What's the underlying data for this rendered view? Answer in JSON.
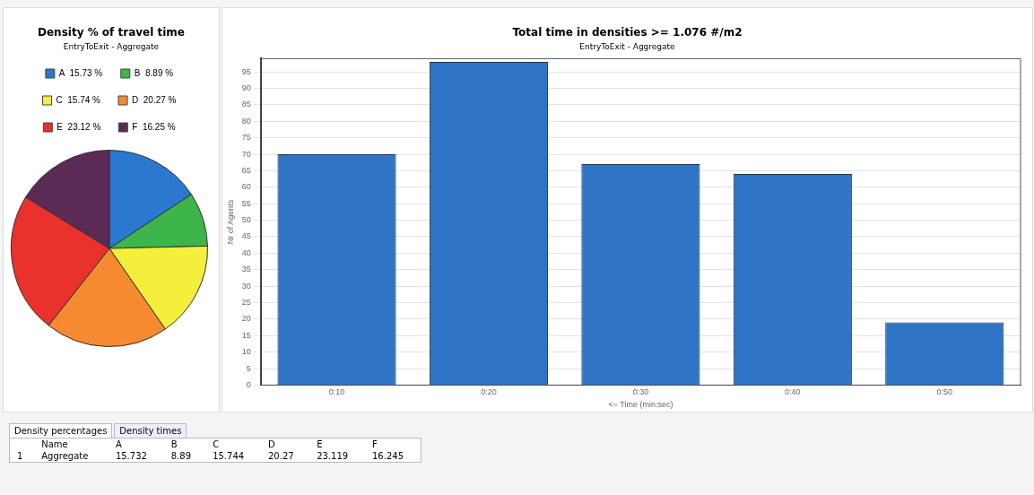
{
  "chart_data": [
    {
      "type": "pie",
      "title": "Density % of travel time",
      "subtitle": "EntryToExit - Aggregate",
      "categories": [
        "A",
        "B",
        "C",
        "D",
        "E",
        "F"
      ],
      "values": [
        15.732,
        8.89,
        15.744,
        20.27,
        23.119,
        16.245
      ],
      "value_labels": [
        "15.73 %",
        "8.89 %",
        "15.74 %",
        "20.27 %",
        "23.12 %",
        "16.25 %"
      ],
      "colors": [
        "#2b78d0",
        "#3db54a",
        "#f4ef3c",
        "#f58a30",
        "#e8322b",
        "#5b2b56"
      ],
      "legend": "top"
    },
    {
      "type": "bar",
      "title": "Total time in densities >= 1.076 #/m2",
      "subtitle": "EntryToExit - Aggregate",
      "categories": [
        "0:10",
        "0:20",
        "0:30",
        "0:40",
        "0:50"
      ],
      "values": [
        70,
        98,
        67,
        64,
        19
      ],
      "color": "#2f74c4",
      "xlabel": "<= Time (min:sec)",
      "ylabel": "Nr of Agents",
      "ylim": [
        0,
        99
      ],
      "yticks": [
        0,
        5,
        10,
        15,
        20,
        25,
        30,
        35,
        40,
        45,
        50,
        55,
        60,
        65,
        70,
        75,
        80,
        85,
        90,
        95
      ],
      "grid": "y",
      "legend": false
    },
    {
      "type": "other",
      "annotations": [
        "Density percentages",
        "Density times",
        "Name",
        "A",
        "B",
        "C",
        "D",
        "E",
        "F",
        "1",
        "Aggregate",
        "15.732",
        "8.89",
        "15.744",
        "20.27",
        "23.119",
        "16.245"
      ]
    }
  ]
}
